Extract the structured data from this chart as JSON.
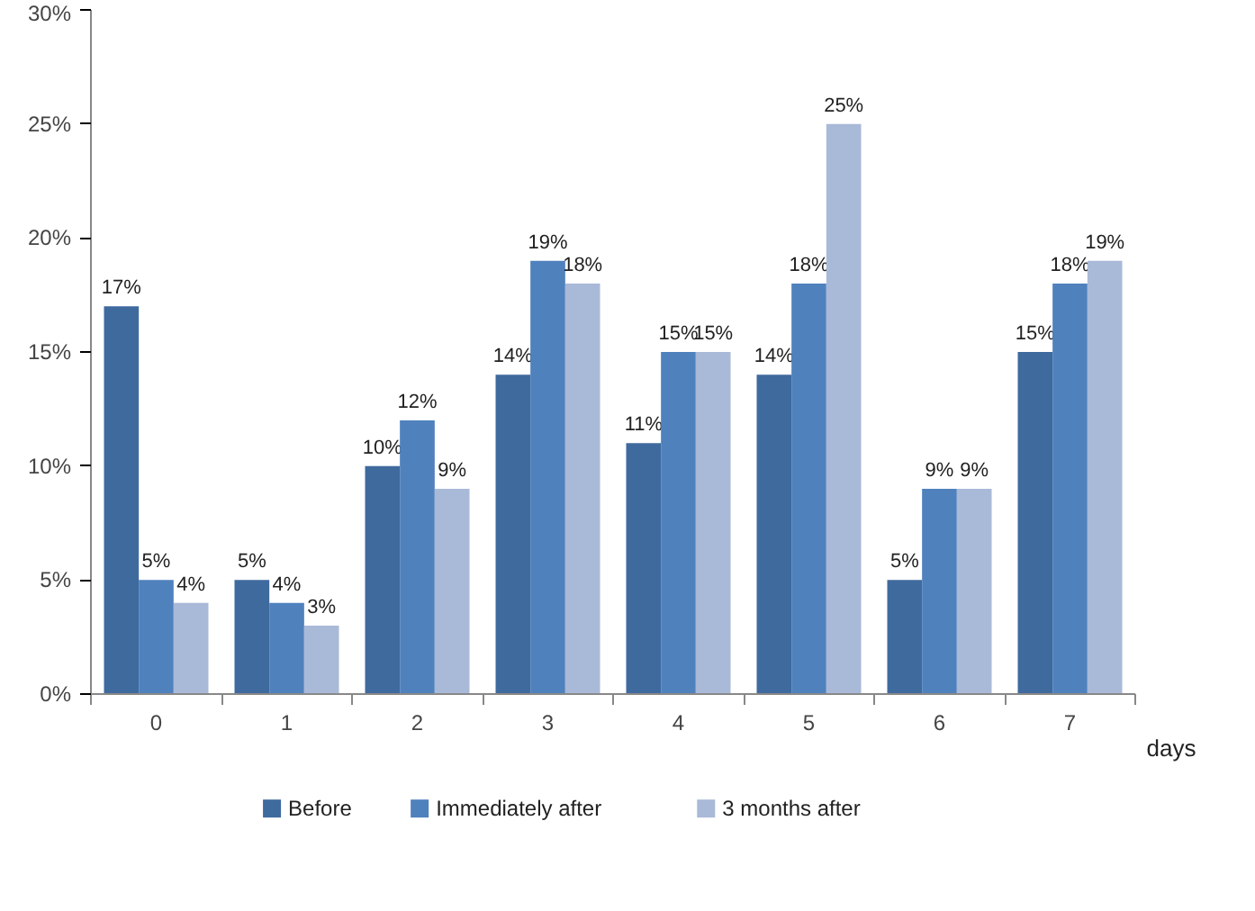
{
  "chart_data": {
    "type": "bar",
    "categories": [
      "0",
      "1",
      "2",
      "3",
      "4",
      "5",
      "6",
      "7"
    ],
    "xlabel": "days",
    "ylim": [
      0,
      30
    ],
    "yticks": [
      {
        "value": 0,
        "label": "0%"
      },
      {
        "value": 5,
        "label": "5%"
      },
      {
        "value": 10,
        "label": "10%"
      },
      {
        "value": 15,
        "label": "15%"
      },
      {
        "value": 20,
        "label": "20%"
      },
      {
        "value": 25,
        "label": "25%"
      },
      {
        "value": 30,
        "label": "30%"
      }
    ],
    "legend": "bottom",
    "grid": false,
    "series": [
      {
        "name": "Before",
        "color": "#3f6a9e",
        "values": [
          17,
          5,
          10,
          14,
          11,
          14,
          5,
          15
        ],
        "value_labels": [
          "17%",
          "5%",
          "10%",
          "14%",
          "11%",
          "14%",
          "5%",
          "15%"
        ]
      },
      {
        "name": "Immediately after",
        "color": "#4f81bd",
        "values": [
          5,
          4,
          12,
          19,
          15,
          18,
          9,
          18
        ],
        "value_labels": [
          "5%",
          "4%",
          "12%",
          "19%",
          "15%",
          "18%",
          "9%",
          "18%"
        ]
      },
      {
        "name": "3 months after",
        "color": "#a9b9d8",
        "values": [
          4,
          3,
          9,
          18,
          15,
          25,
          9,
          19
        ],
        "value_labels": [
          "4%",
          "3%",
          "9%",
          "18%",
          "15%",
          "25%",
          "9%",
          "19%"
        ]
      }
    ]
  }
}
